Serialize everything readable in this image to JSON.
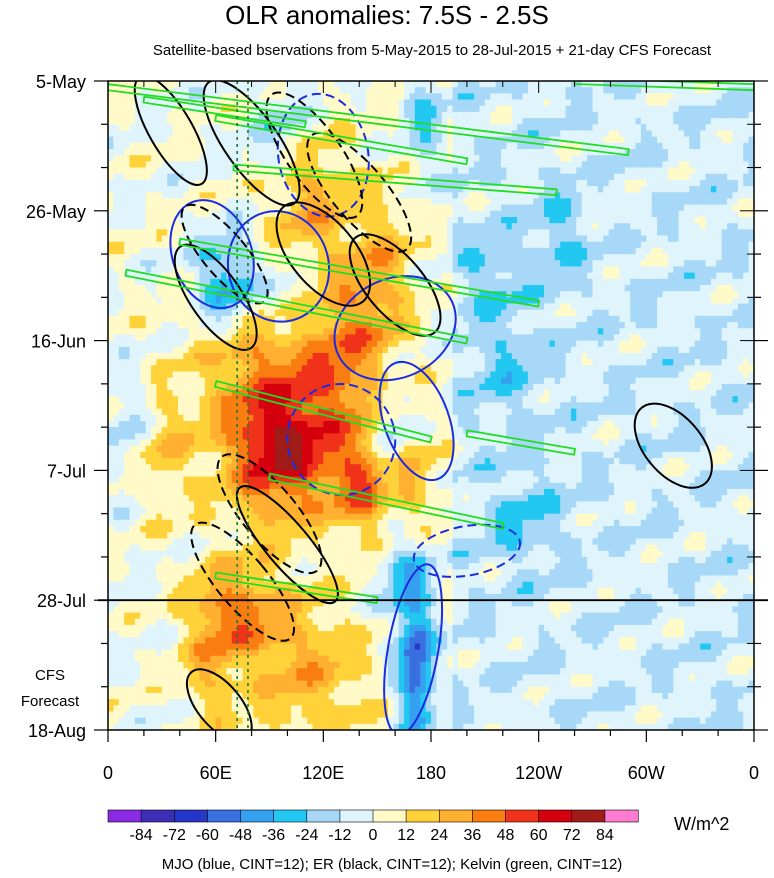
{
  "chart_data": {
    "type": "heatmap",
    "title": "OLR anomalies: 7.5S - 2.5S",
    "subtitle": "Satellite-based bservations from 5-May-2015 to 28-Jul-2015 + 21-day CFS Forecast",
    "x_ticks": [
      "0",
      "60E",
      "120E",
      "180",
      "120W",
      "60W",
      "0"
    ],
    "x_tick_lon": [
      0,
      60,
      120,
      180,
      240,
      300,
      360
    ],
    "y_ticks": [
      "5-May",
      "26-May",
      "16-Jun",
      "7-Jul",
      "28-Jul",
      "18-Aug"
    ],
    "y_tick_day": [
      0,
      21,
      42,
      63,
      84,
      105
    ],
    "observation_end": "28-Jul",
    "forecast_label": [
      "CFS",
      "Forecast"
    ],
    "colorbar": {
      "labels": [
        "-84",
        "-72",
        "-60",
        "-48",
        "-36",
        "-24",
        "-12",
        "0",
        "12",
        "24",
        "36",
        "48",
        "60",
        "72",
        "84"
      ],
      "colors": [
        "#8a2be2",
        "#3b2fb5",
        "#2637c8",
        "#3a6fe0",
        "#36a0f0",
        "#22c8f2",
        "#a8d8f8",
        "#dff4fb",
        "#fffac8",
        "#ffd23a",
        "#ffb030",
        "#fa7d12",
        "#f0321a",
        "#d4000d",
        "#a01c18",
        "#ff7ad0"
      ],
      "units": "W/m^2"
    },
    "contours_legend": "MJO (blue, CINT=12); ER (black, CINT=12); Kelvin (green, CINT=12)",
    "series": [
      {
        "color": "#1b2be0",
        "blobs": [
          {
            "lon": 58,
            "day": 28,
            "rlon": 22,
            "rday": 9,
            "angle": -20,
            "dashed": false
          },
          {
            "lon": 95,
            "day": 30,
            "rlon": 28,
            "rday": 9,
            "angle": -15,
            "dashed": false
          },
          {
            "lon": 160,
            "day": 40,
            "rlon": 35,
            "rday": 8,
            "angle": -25,
            "dashed": false
          },
          {
            "lon": 172,
            "day": 55,
            "rlon": 18,
            "rday": 10,
            "angle": -20,
            "dashed": false
          },
          {
            "lon": 170,
            "day": 92,
            "rlon": 14,
            "rday": 14,
            "angle": 10,
            "dashed": false
          },
          {
            "lon": 120,
            "day": 12,
            "rlon": 25,
            "rday": 10,
            "angle": -10,
            "dashed": true
          },
          {
            "lon": 130,
            "day": 58,
            "rlon": 30,
            "rday": 9,
            "angle": -15,
            "dashed": true
          },
          {
            "lon": 200,
            "day": 76,
            "rlon": 30,
            "rday": 4,
            "angle": -10,
            "dashed": true
          }
        ]
      },
      {
        "color": "#000000",
        "blobs": [
          {
            "lon": 35,
            "day": 8,
            "rlon": 12,
            "rday": 10,
            "angle": -30,
            "dashed": false
          },
          {
            "lon": 80,
            "day": 10,
            "rlon": 15,
            "rday": 12,
            "angle": -35,
            "dashed": false
          },
          {
            "lon": 60,
            "day": 35,
            "rlon": 14,
            "rday": 10,
            "angle": -35,
            "dashed": false
          },
          {
            "lon": 120,
            "day": 28,
            "rlon": 18,
            "rday": 10,
            "angle": -40,
            "dashed": false
          },
          {
            "lon": 160,
            "day": 33,
            "rlon": 16,
            "rday": 10,
            "angle": -40,
            "dashed": false
          },
          {
            "lon": 100,
            "day": 75,
            "rlon": 12,
            "rday": 12,
            "angle": -40,
            "dashed": false
          },
          {
            "lon": 315,
            "day": 59,
            "rlon": 16,
            "rday": 8,
            "angle": -40,
            "dashed": false
          },
          {
            "lon": 62,
            "day": 101,
            "rlon": 12,
            "rday": 7,
            "angle": -40,
            "dashed": false
          },
          {
            "lon": 115,
            "day": 12,
            "rlon": 15,
            "rday": 12,
            "angle": -35,
            "dashed": true
          },
          {
            "lon": 140,
            "day": 18,
            "rlon": 15,
            "rday": 12,
            "angle": -40,
            "dashed": true
          },
          {
            "lon": 65,
            "day": 28,
            "rlon": 12,
            "rday": 10,
            "angle": -40,
            "dashed": true
          },
          {
            "lon": 90,
            "day": 70,
            "rlon": 15,
            "rday": 12,
            "angle": -40,
            "dashed": true
          },
          {
            "lon": 75,
            "day": 81,
            "rlon": 14,
            "rday": 12,
            "angle": -40,
            "dashed": true
          }
        ]
      },
      {
        "color": "#22dd22",
        "bands": [
          {
            "lon1": 0,
            "day1": 1,
            "lon2": 290,
            "day2": 11.5
          },
          {
            "lon1": 20,
            "day1": 3,
            "lon2": 110,
            "day2": 7
          },
          {
            "lon1": 60,
            "day1": 6,
            "lon2": 200,
            "day2": 13
          },
          {
            "lon1": 70,
            "day1": 14,
            "lon2": 250,
            "day2": 18
          },
          {
            "lon1": 40,
            "day1": 26,
            "lon2": 240,
            "day2": 36
          },
          {
            "lon1": 10,
            "day1": 31,
            "lon2": 200,
            "day2": 42
          },
          {
            "lon1": 60,
            "day1": 49,
            "lon2": 180,
            "day2": 58
          },
          {
            "lon1": 200,
            "day1": 57,
            "lon2": 260,
            "day2": 60
          },
          {
            "lon1": 90,
            "day1": 64,
            "lon2": 220,
            "day2": 72
          },
          {
            "lon1": 60,
            "day1": 80,
            "lon2": 150,
            "day2": 84
          },
          {
            "lon1": 260,
            "day1": 0,
            "lon2": 360,
            "day2": 1
          }
        ]
      }
    ],
    "vertical_lines_lon": [
      72,
      78
    ]
  }
}
